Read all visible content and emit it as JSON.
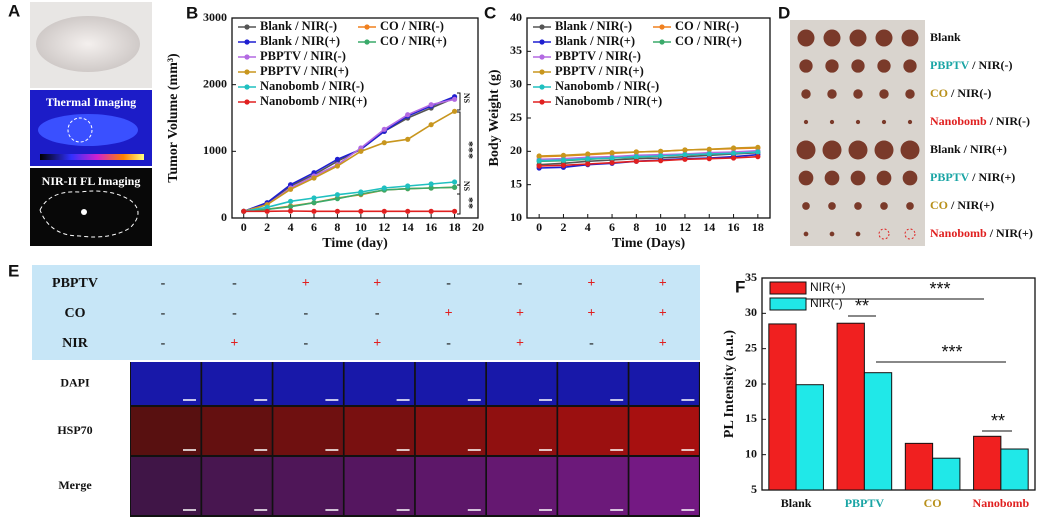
{
  "panel_labels": [
    "A",
    "B",
    "C",
    "D",
    "E",
    "F"
  ],
  "panel_a": {
    "thermal_label": "Thermal Imaging",
    "fl_label": "NIR-II FL Imaging"
  },
  "panel_d": {
    "labels": [
      {
        "group": "Blank",
        "color": "#111111"
      },
      {
        "group": "PBPTV",
        "suffix": " / NIR(-)",
        "color": "#1aa5a5"
      },
      {
        "group": "CO",
        "suffix": " / NIR(-)",
        "color": "#b8901a"
      },
      {
        "group": "Nanobomb",
        "suffix": " / NIR(-)",
        "color": "#e02020"
      },
      {
        "group": "Blank / NIR(+)",
        "color": "#111111"
      },
      {
        "group": "PBPTV",
        "suffix": " / NIR(+)",
        "color": "#1aa5a5"
      },
      {
        "group": "CO",
        "suffix": " / NIR(+)",
        "color": "#b8901a"
      },
      {
        "group": "Nanobomb",
        "suffix": " / NIR(+)",
        "color": "#e02020"
      }
    ]
  },
  "panel_e": {
    "sign_colors": {
      "+": "#e02020",
      "-": "#222222"
    },
    "rows": [
      {
        "label": "PBPTV",
        "cells": [
          "-",
          "-",
          "+",
          "+",
          "-",
          "-",
          "+",
          "+"
        ]
      },
      {
        "label": "CO",
        "cells": [
          "-",
          "-",
          "-",
          "-",
          "+",
          "+",
          "+",
          "+"
        ]
      },
      {
        "label": "NIR",
        "cells": [
          "-",
          "+",
          "-",
          "+",
          "-",
          "+",
          "-",
          "+"
        ]
      }
    ],
    "image_rows": [
      "DAPI",
      "HSP70",
      "Merge"
    ]
  },
  "chart_data": [
    {
      "type": "line",
      "xlabel": "Time (day)",
      "ylabel": "Tumor Volume (mm³)",
      "xlim": [
        -1,
        20
      ],
      "xticks": [
        0,
        2,
        4,
        6,
        8,
        10,
        12,
        14,
        16,
        18,
        20
      ],
      "ylim": [
        0,
        3000
      ],
      "yticks": [
        0,
        1000,
        2000,
        3000
      ],
      "x": [
        0,
        2,
        4,
        6,
        8,
        10,
        12,
        14,
        16,
        18
      ],
      "annotations": [
        "NS",
        "***",
        "NS",
        "**"
      ],
      "series": [
        {
          "name": "Blank / NIR(-)",
          "color": "#555555",
          "values": [
            100,
            220,
            480,
            650,
            850,
            1030,
            1300,
            1500,
            1650,
            1800
          ]
        },
        {
          "name": "CO / NIR(-)",
          "color": "#f0801f",
          "values": [
            100,
            130,
            180,
            230,
            300,
            350,
            420,
            440,
            450,
            460
          ]
        },
        {
          "name": "Blank / NIR(+)",
          "color": "#1f1fd0",
          "values": [
            100,
            230,
            500,
            680,
            880,
            1030,
            1300,
            1530,
            1680,
            1820
          ]
        },
        {
          "name": "CO / NIR(+)",
          "color": "#3aaa6a",
          "values": [
            100,
            130,
            170,
            230,
            290,
            360,
            420,
            440,
            450,
            460
          ]
        },
        {
          "name": "PBPTV / NIR(-)",
          "color": "#b36ae2",
          "values": [
            100,
            200,
            450,
            630,
            800,
            1050,
            1330,
            1550,
            1700,
            1780
          ]
        },
        {
          "name": "PBPTV / NIR(+)",
          "color": "#c8961e",
          "values": [
            100,
            200,
            430,
            600,
            780,
            1000,
            1130,
            1180,
            1400,
            1600
          ]
        },
        {
          "name": "Nanobomb / NIR(-)",
          "color": "#20c0c0",
          "values": [
            100,
            160,
            250,
            300,
            350,
            390,
            450,
            480,
            510,
            540
          ]
        },
        {
          "name": "Nanobomb / NIR(+)",
          "color": "#e02020",
          "values": [
            100,
            100,
            105,
            100,
            100,
            100,
            100,
            100,
            100,
            100
          ]
        }
      ]
    },
    {
      "type": "line",
      "xlabel": "Time (Days)",
      "ylabel": "Body Weight (g)",
      "xlim": [
        -1,
        19
      ],
      "xticks": [
        0,
        2,
        4,
        6,
        8,
        10,
        12,
        14,
        16,
        18
      ],
      "ylim": [
        10,
        40
      ],
      "yticks": [
        10,
        15,
        20,
        25,
        30,
        35,
        40
      ],
      "x": [
        0,
        2,
        4,
        6,
        8,
        10,
        12,
        14,
        16,
        18
      ],
      "series": [
        {
          "name": "Blank / NIR(-)",
          "color": "#555555",
          "values": [
            18,
            18.2,
            18.5,
            18.7,
            18.9,
            19,
            19.2,
            19.4,
            19.6,
            19.8
          ]
        },
        {
          "name": "CO / NIR(-)",
          "color": "#f0801f",
          "values": [
            19.2,
            19.3,
            19.5,
            19.7,
            19.9,
            20,
            20.2,
            20.3,
            20.4,
            20.5
          ]
        },
        {
          "name": "Blank / NIR(+)",
          "color": "#1f1fd0",
          "values": [
            17.5,
            17.6,
            18,
            18.2,
            18.5,
            18.7,
            18.9,
            19,
            19.2,
            19.5
          ]
        },
        {
          "name": "CO / NIR(+)",
          "color": "#3aaa6a",
          "values": [
            18.5,
            18.6,
            18.8,
            19,
            19.1,
            19.3,
            19.5,
            19.6,
            19.8,
            20
          ]
        },
        {
          "name": "PBPTV / NIR(-)",
          "color": "#b36ae2",
          "values": [
            18.8,
            18.9,
            19.1,
            19.2,
            19.4,
            19.5,
            19.6,
            19.8,
            19.9,
            20.1
          ]
        },
        {
          "name": "PBPTV / NIR(+)",
          "color": "#c8961e",
          "values": [
            19.3,
            19.4,
            19.6,
            19.8,
            19.9,
            20,
            20.2,
            20.3,
            20.5,
            20.6
          ]
        },
        {
          "name": "Nanobomb / NIR(-)",
          "color": "#20c0c0",
          "values": [
            18.6,
            18.7,
            18.9,
            19,
            19.2,
            19.3,
            19.5,
            19.6,
            19.7,
            19.9
          ]
        },
        {
          "name": "Nanobomb / NIR(+)",
          "color": "#e02020",
          "values": [
            17.8,
            17.9,
            18.1,
            18.3,
            18.5,
            18.6,
            18.8,
            18.9,
            19,
            19.2
          ]
        }
      ]
    },
    {
      "type": "bar",
      "ylabel": "PL Intensity (a.u.)",
      "categories": [
        "Blank",
        "PBPTV",
        "CO",
        "Nanobomb"
      ],
      "category_colors": [
        "#111111",
        "#1aa5a5",
        "#b8901a",
        "#e02020"
      ],
      "ylim": [
        5,
        35
      ],
      "yticks": [
        5,
        10,
        15,
        20,
        25,
        30,
        35
      ],
      "annotations": [
        "**",
        "***",
        "***",
        "**"
      ],
      "series": [
        {
          "name": "NIR(+)",
          "color": "#f02020",
          "values": [
            28.5,
            28.6,
            11.6,
            12.6
          ]
        },
        {
          "name": "NIR(-)",
          "color": "#20e8e8",
          "values": [
            19.9,
            21.6,
            9.5,
            10.8
          ]
        }
      ]
    }
  ]
}
